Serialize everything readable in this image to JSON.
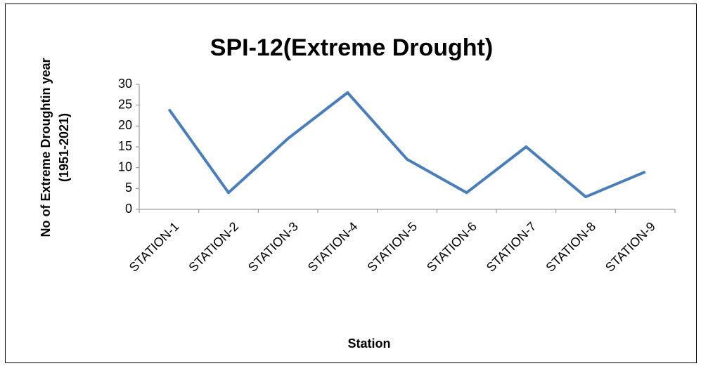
{
  "chart_data": {
    "type": "line",
    "title": "SPI-12(Extreme Drought)",
    "x_label": "Station",
    "y_label": [
      "No of Extreme Droughtin year",
      "(1951-2021)"
    ],
    "categories": [
      "STATION-1",
      "STATION-2",
      "STATION-3",
      "STATION-4",
      "STATION-5",
      "STATION-6",
      "STATION-7",
      "STATION-8",
      "STATION-9"
    ],
    "values": [
      24,
      4,
      17,
      28,
      12,
      4,
      15,
      3,
      9
    ],
    "color": "#4a7ebb",
    "ylim": [
      0,
      30
    ],
    "yticks": [
      0,
      5,
      10,
      15,
      20,
      25,
      30
    ],
    "grid": false
  }
}
